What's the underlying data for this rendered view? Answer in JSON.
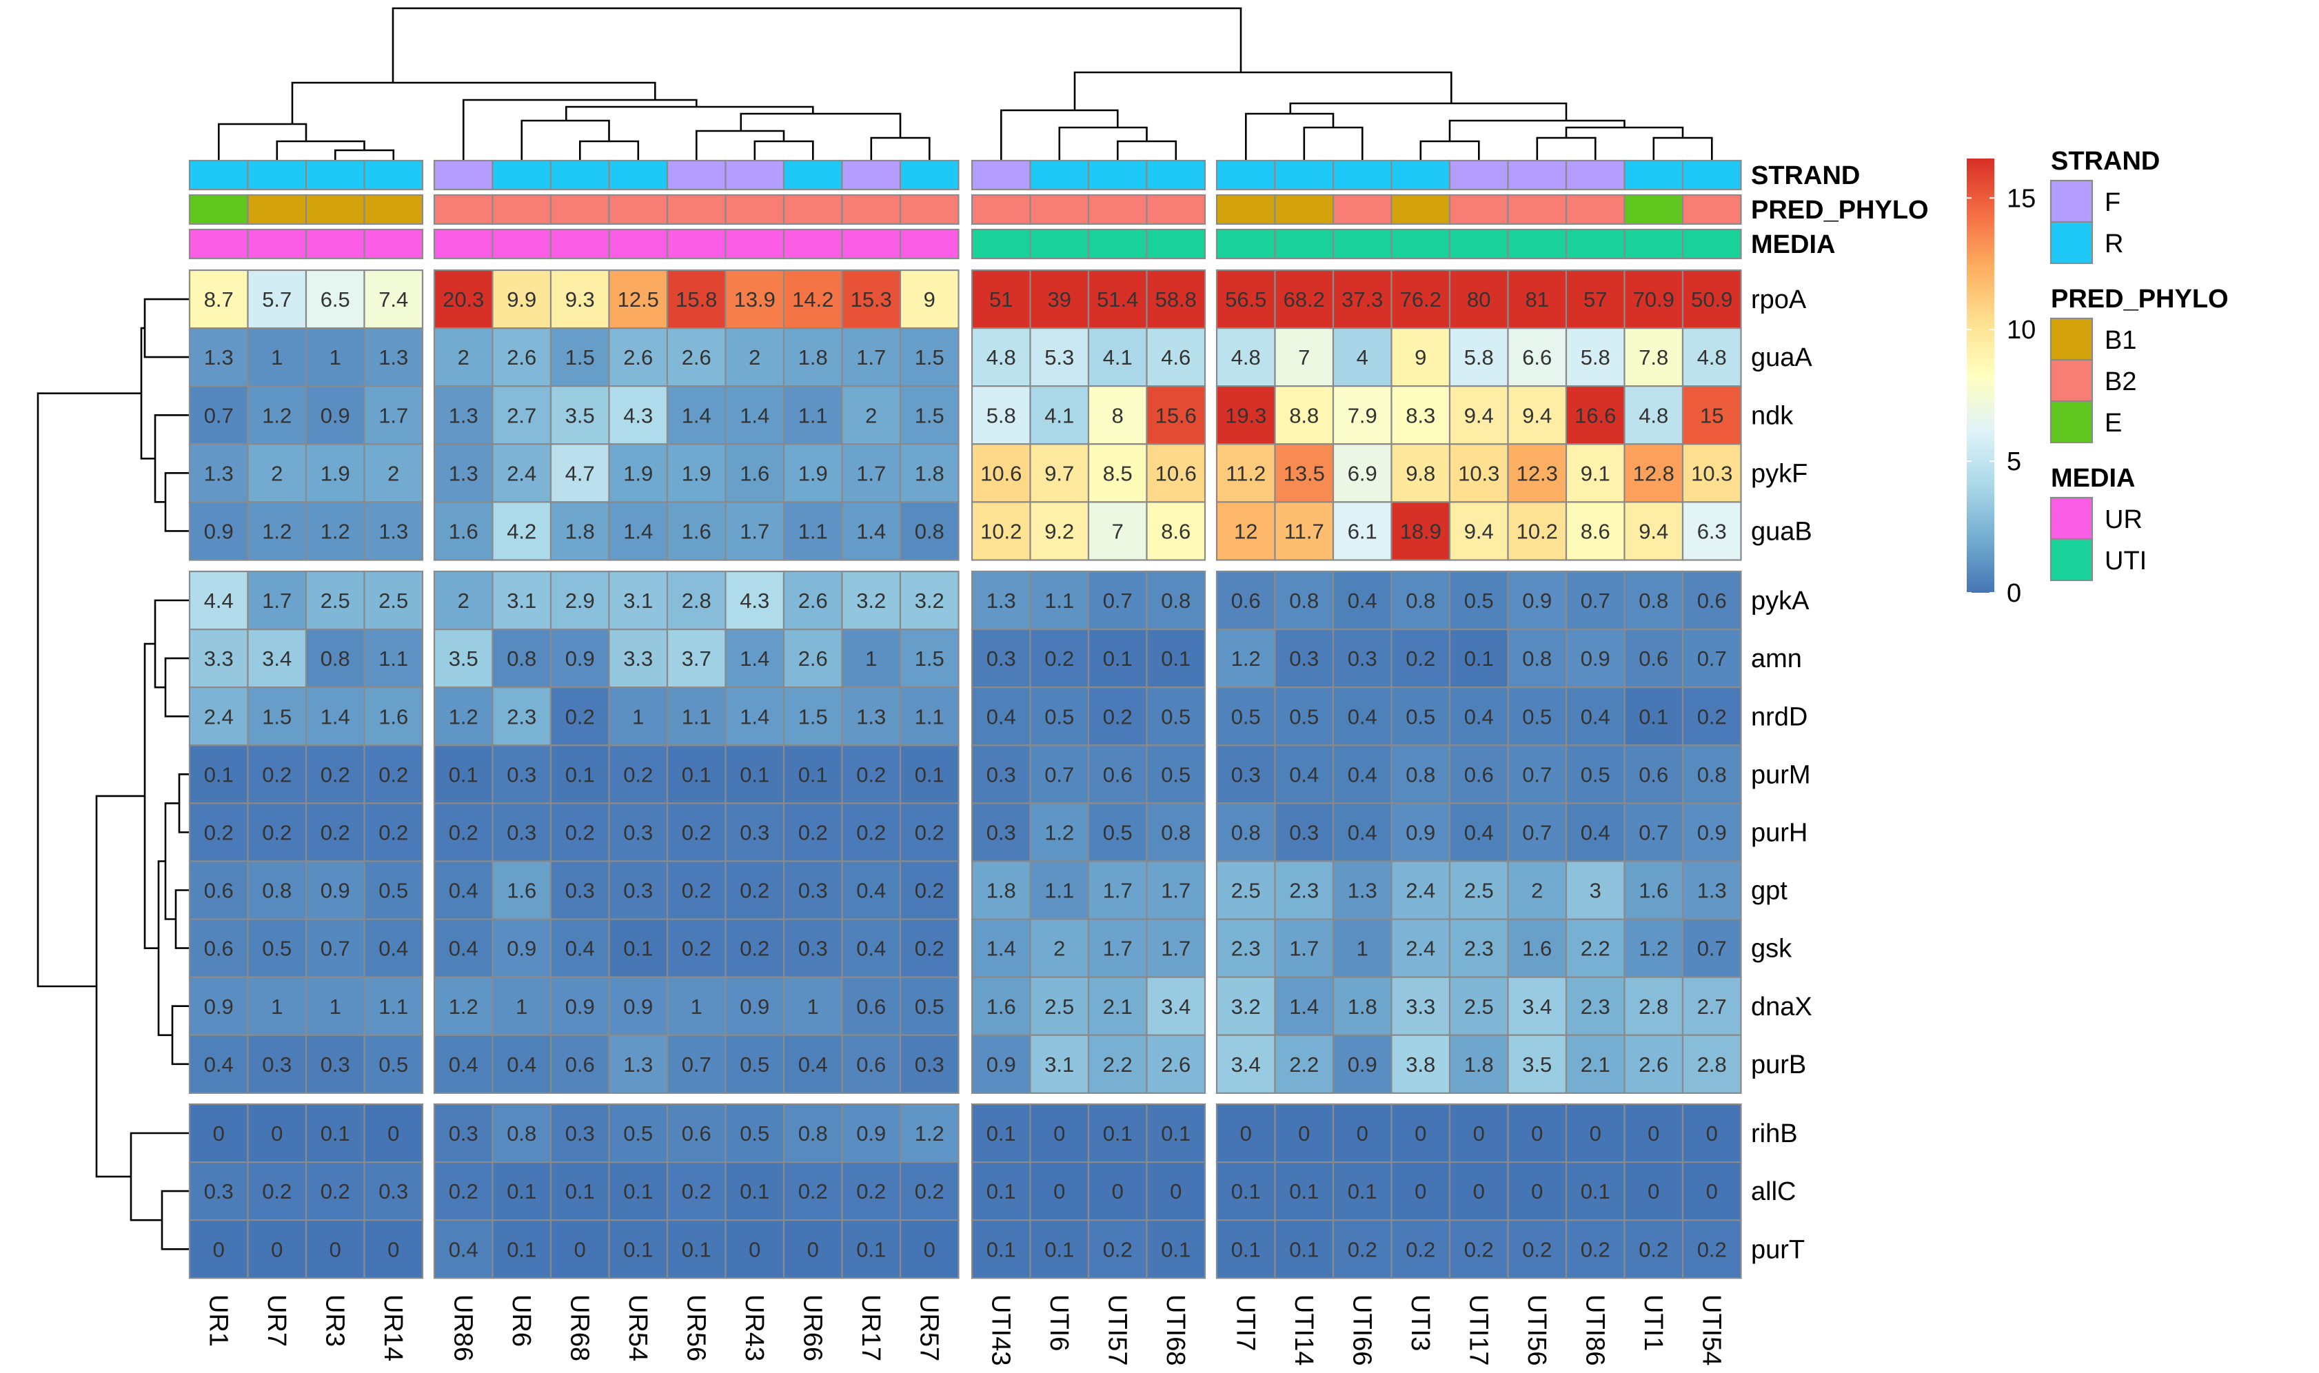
{
  "chart_data": {
    "type": "heatmap",
    "columns": [
      "UR1",
      "UR7",
      "UR3",
      "UR14",
      "UR86",
      "UR6",
      "UR68",
      "UR54",
      "UR56",
      "UR43",
      "UR66",
      "UR17",
      "UR57",
      "UTI43",
      "UTI6",
      "UTI57",
      "UTI68",
      "UTI7",
      "UTI14",
      "UTI66",
      "UTI3",
      "UTI17",
      "UTI56",
      "UTI86",
      "UTI1",
      "UTI54"
    ],
    "column_groups": [
      4,
      9,
      4,
      9
    ],
    "rows": [
      "rpoA",
      "guaA",
      "ndk",
      "pykF",
      "guaB",
      "pykA",
      "amn",
      "nrdD",
      "purM",
      "purH",
      "gpt",
      "gsk",
      "dnaX",
      "purB",
      "rihB",
      "allC",
      "purT"
    ],
    "row_groups": [
      5,
      9,
      3
    ],
    "values": [
      [
        "8.7",
        "5.7",
        "6.5",
        "7.4",
        "20.3",
        "9.9",
        "9.3",
        "12.5",
        "15.8",
        "13.9",
        "14.2",
        "15.3",
        "9",
        "51",
        "39",
        "51.4",
        "58.8",
        "56.5",
        "68.2",
        "37.3",
        "76.2",
        "80",
        "81",
        "57",
        "70.9",
        "50.9"
      ],
      [
        "1.3",
        "1",
        "1",
        "1.3",
        "2",
        "2.6",
        "1.5",
        "2.6",
        "2.6",
        "2",
        "1.8",
        "1.7",
        "1.5",
        "4.8",
        "5.3",
        "4.1",
        "4.6",
        "4.8",
        "7",
        "4",
        "9",
        "5.8",
        "6.6",
        "5.8",
        "7.8",
        "4.8"
      ],
      [
        "0.7",
        "1.2",
        "0.9",
        "1.7",
        "1.3",
        "2.7",
        "3.5",
        "4.3",
        "1.4",
        "1.4",
        "1.1",
        "2",
        "1.5",
        "5.8",
        "4.1",
        "8",
        "15.6",
        "19.3",
        "8.8",
        "7.9",
        "8.3",
        "9.4",
        "9.4",
        "16.6",
        "4.8",
        "15"
      ],
      [
        "1.3",
        "2",
        "1.9",
        "2",
        "1.3",
        "2.4",
        "4.7",
        "1.9",
        "1.9",
        "1.6",
        "1.9",
        "1.7",
        "1.8",
        "10.6",
        "9.7",
        "8.5",
        "10.6",
        "11.2",
        "13.5",
        "6.9",
        "9.8",
        "10.3",
        "12.3",
        "9.1",
        "12.8",
        "10.3"
      ],
      [
        "0.9",
        "1.2",
        "1.2",
        "1.3",
        "1.6",
        "4.2",
        "1.8",
        "1.4",
        "1.6",
        "1.7",
        "1.1",
        "1.4",
        "0.8",
        "10.2",
        "9.2",
        "7",
        "8.6",
        "12",
        "11.7",
        "6.1",
        "18.9",
        "9.4",
        "10.2",
        "8.6",
        "9.4",
        "6.3"
      ],
      [
        "4.4",
        "1.7",
        "2.5",
        "2.5",
        "2",
        "3.1",
        "2.9",
        "3.1",
        "2.8",
        "4.3",
        "2.6",
        "3.2",
        "3.2",
        "1.3",
        "1.1",
        "0.7",
        "0.8",
        "0.6",
        "0.8",
        "0.4",
        "0.8",
        "0.5",
        "0.9",
        "0.7",
        "0.8",
        "0.6"
      ],
      [
        "3.3",
        "3.4",
        "0.8",
        "1.1",
        "3.5",
        "0.8",
        "0.9",
        "3.3",
        "3.7",
        "1.4",
        "2.6",
        "1",
        "1.5",
        "0.3",
        "0.2",
        "0.1",
        "0.1",
        "1.2",
        "0.3",
        "0.3",
        "0.2",
        "0.1",
        "0.8",
        "0.9",
        "0.6",
        "0.7"
      ],
      [
        "2.4",
        "1.5",
        "1.4",
        "1.6",
        "1.2",
        "2.3",
        "0.2",
        "1",
        "1.1",
        "1.4",
        "1.5",
        "1.3",
        "1.1",
        "0.4",
        "0.5",
        "0.2",
        "0.5",
        "0.5",
        "0.5",
        "0.4",
        "0.5",
        "0.4",
        "0.5",
        "0.4",
        "0.1",
        "0.2"
      ],
      [
        "0.1",
        "0.2",
        "0.2",
        "0.2",
        "0.1",
        "0.3",
        "0.1",
        "0.2",
        "0.1",
        "0.1",
        "0.1",
        "0.2",
        "0.1",
        "0.3",
        "0.7",
        "0.6",
        "0.5",
        "0.3",
        "0.4",
        "0.4",
        "0.8",
        "0.6",
        "0.7",
        "0.5",
        "0.6",
        "0.8"
      ],
      [
        "0.2",
        "0.2",
        "0.2",
        "0.2",
        "0.2",
        "0.3",
        "0.2",
        "0.3",
        "0.2",
        "0.3",
        "0.2",
        "0.2",
        "0.2",
        "0.3",
        "1.2",
        "0.5",
        "0.8",
        "0.8",
        "0.3",
        "0.4",
        "0.9",
        "0.4",
        "0.7",
        "0.4",
        "0.7",
        "0.9"
      ],
      [
        "0.6",
        "0.8",
        "0.9",
        "0.5",
        "0.4",
        "1.6",
        "0.3",
        "0.3",
        "0.2",
        "0.2",
        "0.3",
        "0.4",
        "0.2",
        "1.8",
        "1.1",
        "1.7",
        "1.7",
        "2.5",
        "2.3",
        "1.3",
        "2.4",
        "2.5",
        "2",
        "3",
        "1.6",
        "1.3"
      ],
      [
        "0.6",
        "0.5",
        "0.7",
        "0.4",
        "0.4",
        "0.9",
        "0.4",
        "0.1",
        "0.2",
        "0.2",
        "0.3",
        "0.4",
        "0.2",
        "1.4",
        "2",
        "1.7",
        "1.7",
        "2.3",
        "1.7",
        "1",
        "2.4",
        "2.3",
        "1.6",
        "2.2",
        "1.2",
        "0.7"
      ],
      [
        "0.9",
        "1",
        "1",
        "1.1",
        "1.2",
        "1",
        "0.9",
        "0.9",
        "1",
        "0.9",
        "1",
        "0.6",
        "0.5",
        "1.6",
        "2.5",
        "2.1",
        "3.4",
        "3.2",
        "1.4",
        "1.8",
        "3.3",
        "2.5",
        "3.4",
        "2.3",
        "2.8",
        "2.7"
      ],
      [
        "0.4",
        "0.3",
        "0.3",
        "0.5",
        "0.4",
        "0.4",
        "0.6",
        "1.3",
        "0.7",
        "0.5",
        "0.4",
        "0.6",
        "0.3",
        "0.9",
        "3.1",
        "2.2",
        "2.6",
        "3.4",
        "2.2",
        "0.9",
        "3.8",
        "1.8",
        "3.5",
        "2.1",
        "2.6",
        "2.8"
      ],
      [
        "0",
        "0",
        "0.1",
        "0",
        "0.3",
        "0.8",
        "0.3",
        "0.5",
        "0.6",
        "0.5",
        "0.8",
        "0.9",
        "1.2",
        "0.1",
        "0",
        "0.1",
        "0.1",
        "0",
        "0",
        "0",
        "0",
        "0",
        "0",
        "0",
        "0",
        "0"
      ],
      [
        "0.3",
        "0.2",
        "0.2",
        "0.3",
        "0.2",
        "0.1",
        "0.1",
        "0.1",
        "0.2",
        "0.1",
        "0.2",
        "0.2",
        "0.2",
        "0.1",
        "0",
        "0",
        "0",
        "0.1",
        "0.1",
        "0.1",
        "0",
        "0",
        "0",
        "0.1",
        "0",
        "0"
      ],
      [
        "0",
        "0",
        "0",
        "0",
        "0.4",
        "0.1",
        "0",
        "0.1",
        "0.1",
        "0",
        "0",
        "0.1",
        "0",
        "0.1",
        "0.1",
        "0.2",
        "0.1",
        "0.1",
        "0.1",
        "0.2",
        "0.2",
        "0.2",
        "0.2",
        "0.2",
        "0.2",
        "0.2"
      ]
    ],
    "color_scale": {
      "legend_ticks": [
        "0",
        "5",
        "10",
        "15"
      ],
      "palette_colors": [
        "#4575b4",
        "#74add1",
        "#abd9e9",
        "#e0f3f8",
        "#ffffbf",
        "#fee090",
        "#fdae61",
        "#f46d43",
        "#d73027"
      ],
      "range": [
        0,
        16.5
      ]
    },
    "annotations": {
      "STRAND": [
        "R",
        "R",
        "R",
        "R",
        "F",
        "R",
        "R",
        "R",
        "F",
        "F",
        "R",
        "F",
        "R",
        "F",
        "R",
        "R",
        "R",
        "R",
        "R",
        "R",
        "R",
        "F",
        "F",
        "F",
        "R",
        "R"
      ],
      "PRED_PHYLO": [
        "E",
        "B1",
        "B1",
        "B1",
        "B2",
        "B2",
        "B2",
        "B2",
        "B2",
        "B2",
        "B2",
        "B2",
        "B2",
        "B2",
        "B2",
        "B2",
        "B2",
        "B1",
        "B1",
        "B2",
        "B1",
        "B2",
        "B2",
        "B2",
        "E",
        "B2"
      ],
      "MEDIA": [
        "UR",
        "UR",
        "UR",
        "UR",
        "UR",
        "UR",
        "UR",
        "UR",
        "UR",
        "UR",
        "UR",
        "UR",
        "UR",
        "UTI",
        "UTI",
        "UTI",
        "UTI",
        "UTI",
        "UTI",
        "UTI",
        "UTI",
        "UTI",
        "UTI",
        "UTI",
        "UTI",
        "UTI"
      ]
    },
    "annotation_order": [
      "STRAND",
      "PRED_PHYLO",
      "MEDIA"
    ],
    "annotation_legends": [
      {
        "title": "STRAND",
        "items": [
          {
            "label": "F",
            "color": "#b39dff"
          },
          {
            "label": "R",
            "color": "#1ec8f7"
          }
        ]
      },
      {
        "title": "PRED_PHYLO",
        "items": [
          {
            "label": "B1",
            "color": "#d4a30b"
          },
          {
            "label": "B2",
            "color": "#f87d74"
          },
          {
            "label": "E",
            "color": "#5fc71e"
          }
        ]
      },
      {
        "title": "MEDIA",
        "items": [
          {
            "label": "UR",
            "color": "#fb5de6"
          },
          {
            "label": "UTI",
            "color": "#18d29a"
          }
        ]
      }
    ],
    "border_color": "#8a8a8a"
  }
}
